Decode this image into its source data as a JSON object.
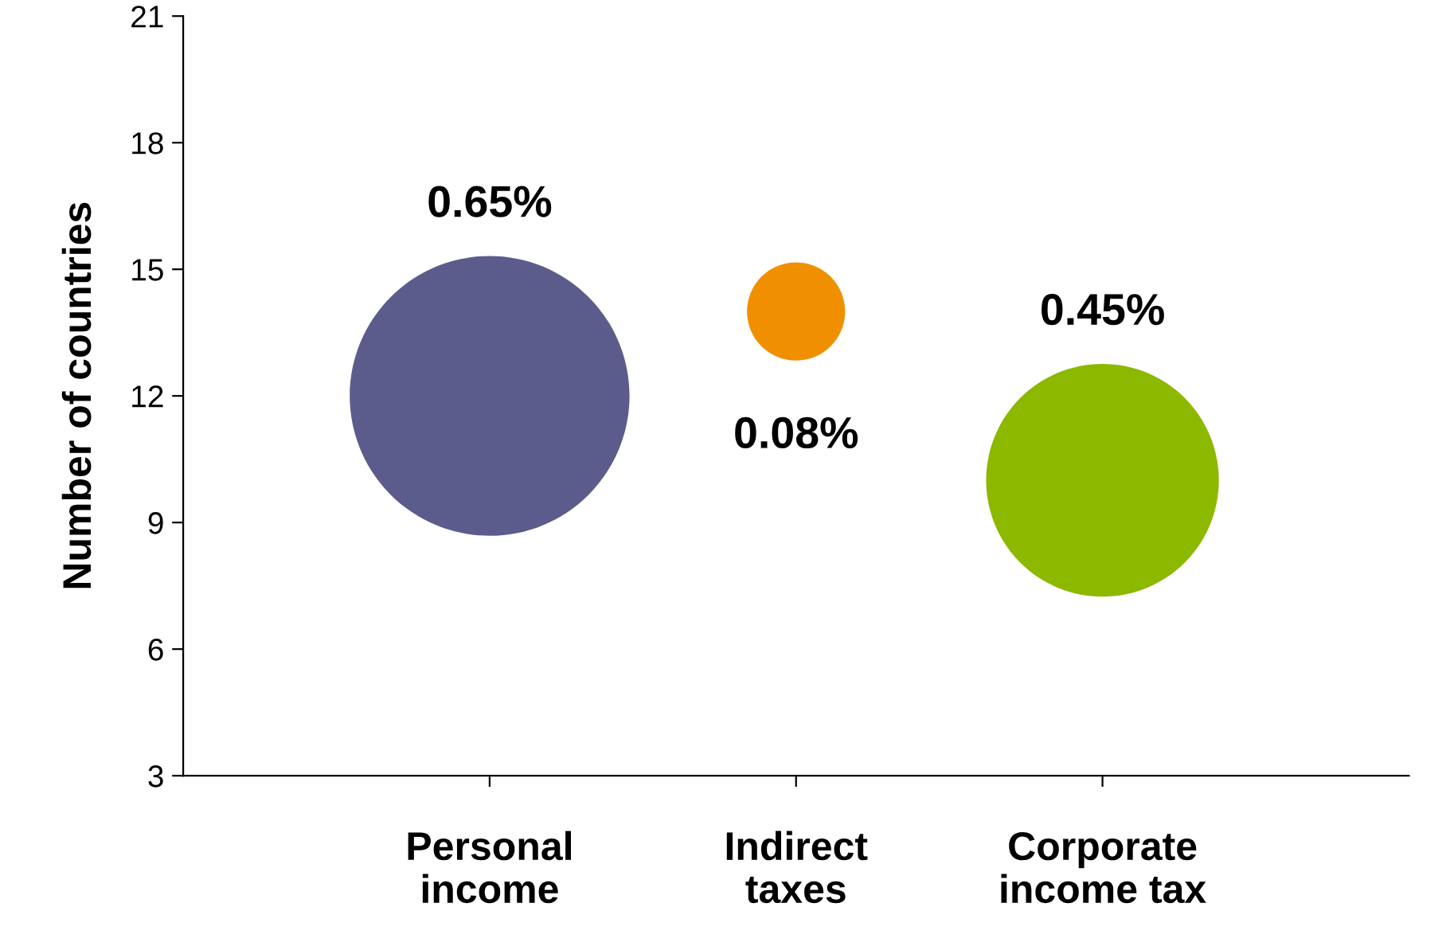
{
  "chart_data": {
    "type": "bubble",
    "ylabel": "Number of countries",
    "categories": [
      "Personal\nincome",
      "Indirect\ntaxes",
      "Corporate\nincome tax"
    ],
    "values": [
      12,
      14,
      10
    ],
    "sizes": [
      1,
      0.123,
      0.692
    ],
    "colors": [
      "#5c5c8c",
      "#f09000",
      "#8cb800"
    ],
    "ylim": [
      3,
      21
    ],
    "yticks": [
      3,
      6,
      9,
      12,
      15,
      18,
      21
    ],
    "grid": false,
    "annotations": [
      "0.65%",
      "0.08%",
      "0.45%"
    ]
  }
}
